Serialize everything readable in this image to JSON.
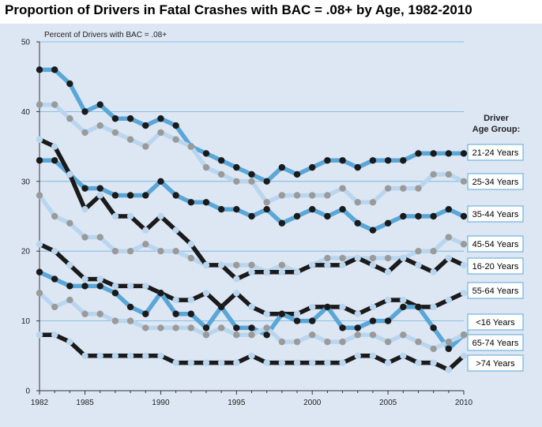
{
  "title": "Proportion of Drivers in Fatal Crashes with BAC = .08+ by Age, 1982-2010",
  "chart_data": {
    "type": "line",
    "title": "Proportion of Drivers in Fatal Crashes with BAC = .08+ by Age, 1982-2010",
    "ylabel": "Percent of Drivers with BAC = .08+",
    "xlabel": "",
    "legend_title": "Driver Age Group:",
    "legend_placement": "right",
    "xlim": [
      1982,
      2010
    ],
    "ylim": [
      0,
      50
    ],
    "x_ticks": [
      1982,
      1985,
      1990,
      1995,
      2000,
      2005,
      2010
    ],
    "y_ticks": [
      0,
      10,
      20,
      30,
      40,
      50
    ],
    "grid": "horizontal",
    "x": [
      1982,
      1983,
      1984,
      1985,
      1986,
      1987,
      1988,
      1989,
      1990,
      1991,
      1992,
      1993,
      1994,
      1995,
      1996,
      1997,
      1998,
      1999,
      2000,
      2001,
      2002,
      2003,
      2004,
      2005,
      2006,
      2007,
      2008,
      2009,
      2010
    ],
    "series": [
      {
        "name": "21-24 Years",
        "line_color": "#5aa6d6",
        "marker_color": "#1a1a1a",
        "values": [
          46,
          46,
          44,
          40,
          41,
          39,
          39,
          38,
          39,
          38,
          35,
          34,
          33,
          32,
          31,
          30,
          32,
          31,
          32,
          33,
          33,
          32,
          33,
          33,
          33,
          34,
          34,
          34,
          34
        ]
      },
      {
        "name": "25-34 Years",
        "line_color": "#b9d6ee",
        "marker_color": "#9a9a9a",
        "values": [
          41,
          41,
          39,
          37,
          38,
          37,
          36,
          35,
          37,
          36,
          35,
          32,
          31,
          30,
          30,
          27,
          28,
          28,
          28,
          28,
          29,
          27,
          27,
          29,
          29,
          29,
          31,
          31,
          30
        ]
      },
      {
        "name": "35-44 Years",
        "line_color": "#5aa6d6",
        "marker_color": "#1a1a1a",
        "values": [
          33,
          33,
          31,
          29,
          29,
          28,
          28,
          28,
          30,
          28,
          27,
          27,
          26,
          26,
          25,
          26,
          24,
          25,
          26,
          25,
          26,
          24,
          23,
          24,
          25,
          25,
          25,
          26,
          25
        ]
      },
      {
        "name": "45-54 Years",
        "line_color": "#b9d6ee",
        "marker_color": "#9a9a9a",
        "values": [
          28,
          25,
          24,
          22,
          22,
          20,
          20,
          21,
          20,
          20,
          19,
          18,
          18,
          18,
          18,
          17,
          18,
          17,
          18,
          19,
          19,
          19,
          19,
          19,
          19,
          20,
          20,
          22,
          21
        ]
      },
      {
        "name": "16-20 Years",
        "line_color": "#1a1a1a",
        "marker_color": "#b9d6ee",
        "values": [
          36,
          35,
          31,
          26,
          28,
          25,
          25,
          23,
          25,
          23,
          21,
          18,
          18,
          16,
          17,
          17,
          17,
          17,
          18,
          18,
          18,
          19,
          18,
          17,
          19,
          18,
          17,
          19,
          18
        ]
      },
      {
        "name": "55-64 Years",
        "line_color": "#1a1a1a",
        "marker_color": "#b9d6ee",
        "values": [
          21,
          20,
          18,
          16,
          16,
          15,
          15,
          15,
          14,
          13,
          13,
          14,
          12,
          14,
          12,
          11,
          11,
          11,
          12,
          12,
          12,
          11,
          12,
          13,
          13,
          12,
          12,
          13,
          14
        ]
      },
      {
        "name": "<16 Years",
        "line_color": "#5aa6d6",
        "marker_color": "#1a1a1a",
        "values": [
          17,
          16,
          15,
          15,
          15,
          14,
          12,
          11,
          14,
          11,
          11,
          9,
          12,
          9,
          9,
          8,
          11,
          10,
          10,
          12,
          9,
          9,
          10,
          10,
          12,
          12,
          9,
          6,
          8
        ]
      },
      {
        "name": "65-74 Years",
        "line_color": "#b9d6ee",
        "marker_color": "#9a9a9a",
        "values": [
          14,
          12,
          13,
          11,
          11,
          10,
          10,
          9,
          9,
          9,
          9,
          8,
          9,
          8,
          8,
          9,
          7,
          7,
          8,
          7,
          7,
          8,
          8,
          7,
          8,
          7,
          6,
          7,
          8
        ]
      },
      {
        "name": ">74 Years",
        "line_color": "#1a1a1a",
        "marker_color": "#b9d6ee",
        "values": [
          8,
          8,
          7,
          5,
          5,
          5,
          5,
          5,
          5,
          4,
          4,
          4,
          4,
          4,
          5,
          4,
          4,
          4,
          4,
          4,
          4,
          5,
          5,
          4,
          5,
          4,
          4,
          3,
          5
        ]
      }
    ]
  }
}
